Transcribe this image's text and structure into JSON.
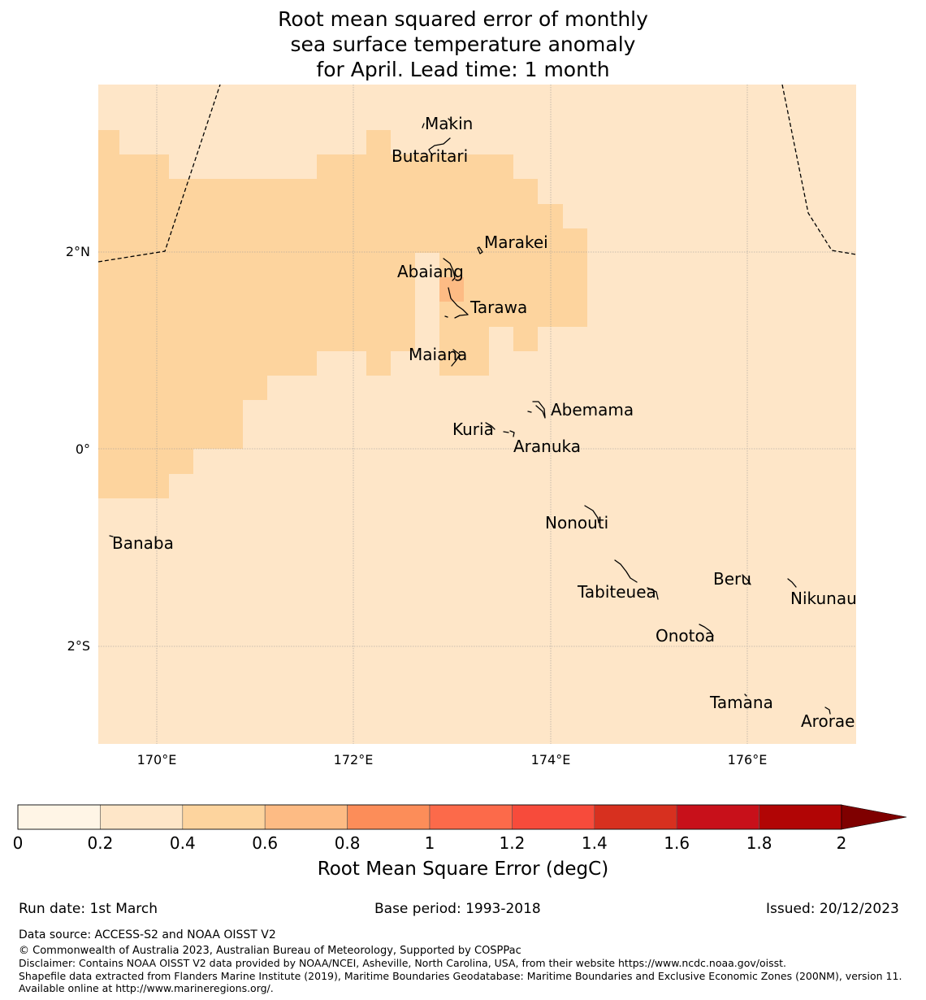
{
  "title": {
    "line1": "Root mean squared error of monthly",
    "line2": "sea surface temperature anomaly",
    "line3": "for April. Lead time: 1 month"
  },
  "axes": {
    "x_ticks": [
      {
        "lon": 170,
        "label": "170°E"
      },
      {
        "lon": 172,
        "label": "172°E"
      },
      {
        "lon": 174,
        "label": "174°E"
      },
      {
        "lon": 176,
        "label": "176°E"
      }
    ],
    "y_ticks": [
      {
        "lat": 2,
        "label": "2°N"
      },
      {
        "lat": 0,
        "label": "0°"
      },
      {
        "lat": -2,
        "label": "2°S"
      }
    ],
    "lon_range": [
      169.4,
      177.1
    ],
    "lat_range": [
      -3.0,
      3.7
    ]
  },
  "places": [
    {
      "name": "Makin",
      "lon": 173.0,
      "lat": 3.3
    },
    {
      "name": "Butaritari",
      "lon": 172.8,
      "lat": 3.0
    },
    {
      "name": "Marakei",
      "lon": 173.3,
      "lat": 2.0
    },
    {
      "name": "Abaiang",
      "lon": 172.9,
      "lat": 1.85
    },
    {
      "name": "Tarawa",
      "lon": 173.0,
      "lat": 1.4
    },
    {
      "name": "Maiana",
      "lon": 173.0,
      "lat": 0.9
    },
    {
      "name": "Abemama",
      "lon": 173.9,
      "lat": 0.4
    },
    {
      "name": "Kuria",
      "lon": 173.4,
      "lat": 0.2
    },
    {
      "name": "Aranuka",
      "lon": 173.6,
      "lat": 0.15
    },
    {
      "name": "Nonouti",
      "lon": 174.4,
      "lat": -0.7
    },
    {
      "name": "Banaba",
      "lon": 169.5,
      "lat": -0.85
    },
    {
      "name": "Tabiteuea",
      "lon": 174.8,
      "lat": -1.4
    },
    {
      "name": "Beru",
      "lon": 176.0,
      "lat": -1.35
    },
    {
      "name": "Nikunau",
      "lon": 176.45,
      "lat": -1.35
    },
    {
      "name": "Onotoa",
      "lon": 175.55,
      "lat": -1.8
    },
    {
      "name": "Tamana",
      "lon": 175.98,
      "lat": -2.5
    },
    {
      "name": "Arorae",
      "lon": 176.82,
      "lat": -2.65
    }
  ],
  "colorbar": {
    "title": "Root Mean Square Error (degC)",
    "levels": [
      0,
      0.2,
      0.4,
      0.6,
      0.8,
      1,
      1.2,
      1.4,
      1.6,
      1.8,
      2
    ],
    "tick_labels": [
      "0",
      "0.2",
      "0.4",
      "0.6",
      "0.8",
      "1",
      "1.2",
      "1.4",
      "1.6",
      "1.8",
      "2"
    ],
    "colors": [
      "#fff5e6",
      "#fee6c8",
      "#fdd49e",
      "#fdbb84",
      "#fc8d59",
      "#fc6a4a",
      "#f74b3b",
      "#d7301f",
      "#c8101a",
      "#b10505"
    ],
    "extend_color": "#7f0000",
    "extend": "max"
  },
  "field_colors": {
    "background_bin": "#fee6c8",
    "mid_bin": "#fdd49e",
    "high_bin": "#fdbb84",
    "coast": "#000000",
    "eez": "#000000"
  },
  "footer": {
    "run_date": "Run date: 1st March",
    "base_period": "Base period: 1993-2018",
    "issued": "Issued: 20/12/2023",
    "data_source": "Data source: ACCESS-S2 and NOAA OISST V2",
    "copyright": "© Commonwealth of Australia 2023, Australian Bureau of Meteorology, Supported by COSPPac",
    "disclaimer": "Disclaimer: Contains NOAA OISST V2 data provided by NOAA/NCEI, Asheville, North Carolina, USA, from their website https://www.ncdc.noaa.gov/oisst.",
    "shapefile": "Shapefile data extracted from Flanders Marine Institute (2019), Maritime Boundaries Geodatabase: Maritime Boundaries and Exclusive Economic Zones (200NM), version 11. Available online at http://www.marineregions.org/."
  }
}
